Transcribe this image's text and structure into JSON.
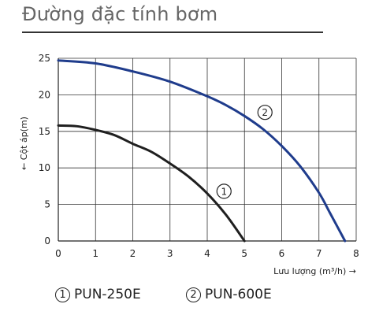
{
  "page": {
    "title": "Đường đặc tính bơm"
  },
  "chart_data": {
    "type": "line",
    "title": "Đường đặc tính bơm",
    "xlabel": "Lưu lượng  (m³/h) →",
    "ylabel": "← Cột áp(m)",
    "xlim": [
      0,
      8
    ],
    "ylim": [
      0,
      25
    ],
    "xticks": [
      0,
      1,
      2,
      3,
      4,
      5,
      6,
      7,
      8
    ],
    "yticks": [
      0,
      5,
      10,
      15,
      20,
      25
    ],
    "grid": true,
    "legend_position": "bottom",
    "series": [
      {
        "name": "PUN-250E",
        "marker": "1",
        "color": "#1f1f1f",
        "x": [
          0,
          0.5,
          1.0,
          1.5,
          2.0,
          2.5,
          3.0,
          3.5,
          4.0,
          4.5,
          5.0
        ],
        "y": [
          15.8,
          15.7,
          15.2,
          14.5,
          13.3,
          12.2,
          10.6,
          8.8,
          6.5,
          3.6,
          0
        ]
      },
      {
        "name": "PUN-600E",
        "marker": "2",
        "color": "#1f3c8c",
        "x": [
          0,
          1.0,
          2.0,
          3.0,
          4.0,
          4.5,
          5.0,
          5.5,
          6.0,
          6.5,
          7.0,
          7.3,
          7.7
        ],
        "y": [
          24.7,
          24.3,
          23.2,
          21.8,
          19.8,
          18.6,
          17.1,
          15.3,
          13.0,
          10.2,
          6.6,
          3.8,
          0
        ]
      }
    ]
  },
  "legend": {
    "items": [
      {
        "num": "1",
        "label": "PUN-250E"
      },
      {
        "num": "2",
        "label": "PUN-600E"
      }
    ]
  }
}
